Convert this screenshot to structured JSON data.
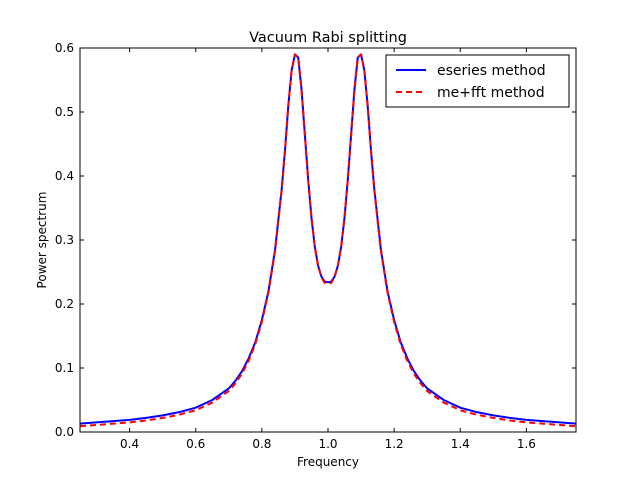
{
  "chart_data": {
    "type": "line",
    "title": "Vacuum Rabi splitting",
    "xlabel": "Frequency",
    "ylabel": "Power spectrum",
    "xlim": [
      0.25,
      1.75
    ],
    "ylim": [
      0.0,
      0.6
    ],
    "xticks": [
      "0.4",
      "0.6",
      "0.8",
      "1.0",
      "1.2",
      "1.4",
      "1.6"
    ],
    "xtick_values": [
      0.4,
      0.6,
      0.8,
      1.0,
      1.2,
      1.4,
      1.6
    ],
    "yticks": [
      "0.0",
      "0.1",
      "0.2",
      "0.3",
      "0.4",
      "0.5",
      "0.6"
    ],
    "ytick_values": [
      0.0,
      0.1,
      0.2,
      0.3,
      0.4,
      0.5,
      0.6
    ],
    "grid": false,
    "legend_position": "top-right",
    "series": [
      {
        "name": "eseries method",
        "color": "#0000ff",
        "style": "solid",
        "x": [
          0.25,
          0.3,
          0.35,
          0.4,
          0.45,
          0.5,
          0.55,
          0.6,
          0.65,
          0.7,
          0.72,
          0.74,
          0.76,
          0.78,
          0.8,
          0.82,
          0.84,
          0.86,
          0.87,
          0.88,
          0.89,
          0.9,
          0.91,
          0.92,
          0.93,
          0.94,
          0.95,
          0.96,
          0.97,
          0.98,
          0.99,
          1.0,
          1.01,
          1.02,
          1.03,
          1.04,
          1.05,
          1.06,
          1.07,
          1.08,
          1.09,
          1.1,
          1.11,
          1.12,
          1.13,
          1.14,
          1.16,
          1.18,
          1.2,
          1.22,
          1.24,
          1.26,
          1.28,
          1.3,
          1.35,
          1.4,
          1.45,
          1.5,
          1.55,
          1.6,
          1.65,
          1.7,
          1.75
        ],
        "y": [
          0.013,
          0.015,
          0.017,
          0.019,
          0.022,
          0.026,
          0.031,
          0.038,
          0.05,
          0.068,
          0.08,
          0.095,
          0.115,
          0.14,
          0.175,
          0.22,
          0.285,
          0.38,
          0.44,
          0.51,
          0.565,
          0.59,
          0.585,
          0.535,
          0.465,
          0.395,
          0.335,
          0.29,
          0.26,
          0.243,
          0.235,
          0.234,
          0.235,
          0.243,
          0.26,
          0.29,
          0.335,
          0.395,
          0.465,
          0.535,
          0.585,
          0.59,
          0.565,
          0.51,
          0.44,
          0.38,
          0.285,
          0.22,
          0.175,
          0.14,
          0.115,
          0.095,
          0.08,
          0.068,
          0.05,
          0.038,
          0.031,
          0.026,
          0.022,
          0.019,
          0.017,
          0.015,
          0.013
        ]
      },
      {
        "name": "me+fft method",
        "color": "#ff0000",
        "style": "dashed",
        "x": [
          0.25,
          0.3,
          0.35,
          0.4,
          0.45,
          0.5,
          0.55,
          0.6,
          0.65,
          0.7,
          0.72,
          0.74,
          0.76,
          0.78,
          0.8,
          0.82,
          0.84,
          0.86,
          0.87,
          0.88,
          0.89,
          0.9,
          0.91,
          0.92,
          0.93,
          0.94,
          0.95,
          0.96,
          0.97,
          0.98,
          0.99,
          1.0,
          1.01,
          1.02,
          1.03,
          1.04,
          1.05,
          1.06,
          1.07,
          1.08,
          1.09,
          1.1,
          1.11,
          1.12,
          1.13,
          1.14,
          1.16,
          1.18,
          1.2,
          1.22,
          1.24,
          1.26,
          1.28,
          1.3,
          1.35,
          1.4,
          1.45,
          1.5,
          1.55,
          1.6,
          1.65,
          1.7,
          1.75
        ],
        "y": [
          0.009,
          0.011,
          0.013,
          0.015,
          0.018,
          0.022,
          0.027,
          0.034,
          0.046,
          0.064,
          0.076,
          0.091,
          0.111,
          0.137,
          0.172,
          0.218,
          0.283,
          0.378,
          0.44,
          0.51,
          0.565,
          0.59,
          0.585,
          0.535,
          0.465,
          0.395,
          0.335,
          0.29,
          0.26,
          0.242,
          0.233,
          0.232,
          0.233,
          0.242,
          0.26,
          0.29,
          0.335,
          0.395,
          0.465,
          0.535,
          0.585,
          0.59,
          0.565,
          0.51,
          0.44,
          0.378,
          0.283,
          0.218,
          0.172,
          0.137,
          0.111,
          0.091,
          0.076,
          0.064,
          0.046,
          0.034,
          0.027,
          0.022,
          0.018,
          0.015,
          0.013,
          0.011,
          0.009
        ]
      }
    ]
  }
}
